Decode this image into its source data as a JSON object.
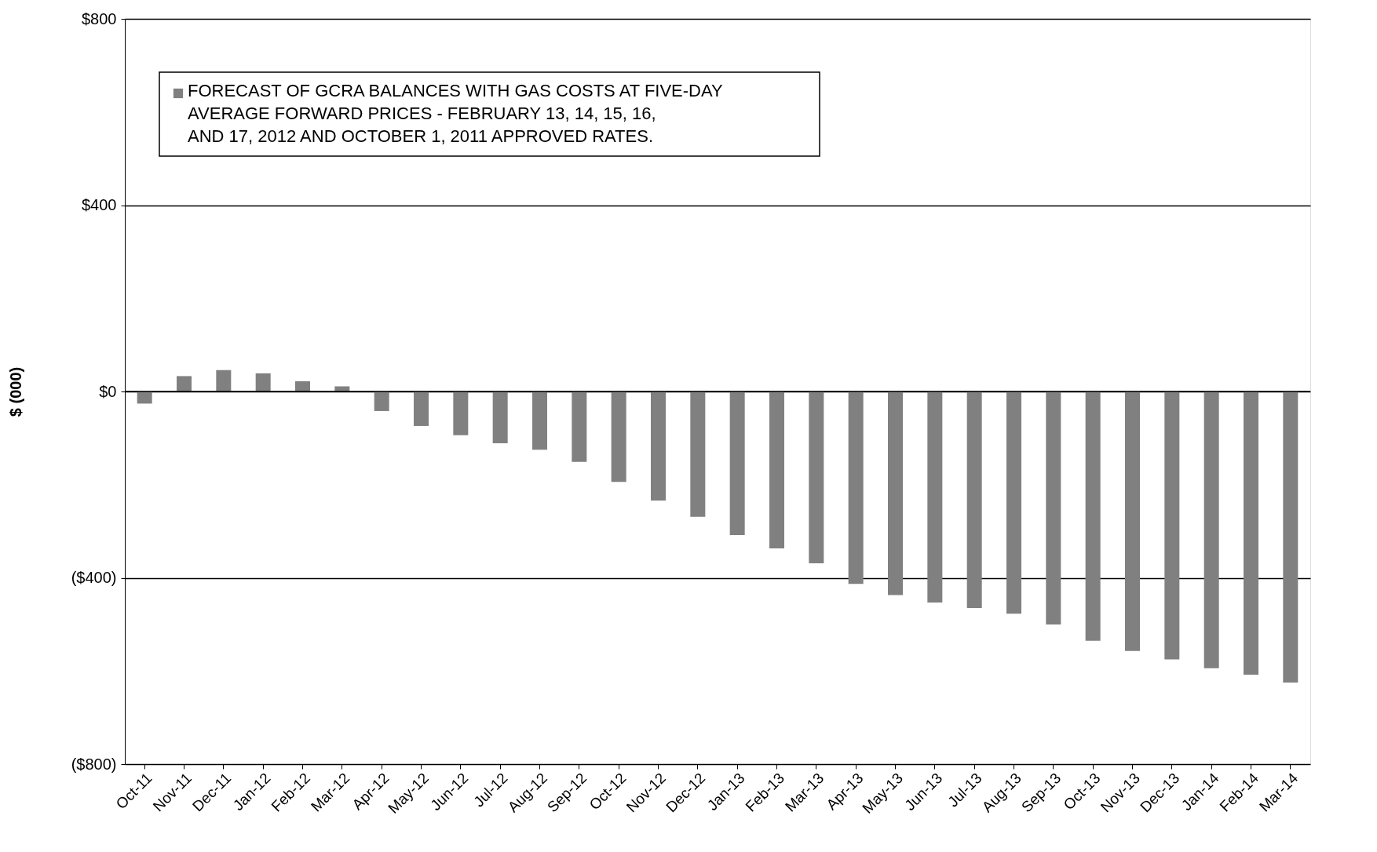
{
  "chart_data": {
    "type": "bar",
    "ylabel": "$ (000)",
    "categories": [
      "Oct-11",
      "Nov-11",
      "Dec-11",
      "Jan-12",
      "Feb-12",
      "Mar-12",
      "Apr-12",
      "May-12",
      "Jun-12",
      "Jul-12",
      "Aug-12",
      "Sep-12",
      "Oct-12",
      "Nov-12",
      "Dec-12",
      "Jan-13",
      "Feb-13",
      "Mar-13",
      "Apr-13",
      "May-13",
      "Jun-13",
      "Jul-13",
      "Aug-13",
      "Sep-13",
      "Oct-13",
      "Nov-13",
      "Dec-13",
      "Jan-14",
      "Feb-14",
      "Mar-14"
    ],
    "series": [
      {
        "name": "FORECAST OF GCRA BALANCES WITH GAS COSTS AT FIVE-DAY AVERAGE FORWARD PRICES - FEBRUARY 13, 14, 15, 16, AND 17, 2012 AND OCTOBER 1, 2011 APPROVED RATES.",
        "color": "#808080",
        "values": [
          -26,
          33,
          46,
          39,
          22,
          11,
          -42,
          -74,
          -94,
          -111,
          -125,
          -151,
          -194,
          -234,
          -269,
          -308,
          -337,
          -369,
          -413,
          -437,
          -453,
          -465,
          -477,
          -500,
          -535,
          -557,
          -575,
          -594,
          -608,
          -625
        ]
      }
    ],
    "ylim": [
      -800,
      800
    ],
    "yticks": [
      {
        "value": -800,
        "label": "($800)"
      },
      {
        "value": -400,
        "label": "($400)"
      },
      {
        "value": 0,
        "label": "$0"
      },
      {
        "value": 400,
        "label": "$400"
      },
      {
        "value": 800,
        "label": "$800"
      }
    ],
    "grid": "y",
    "legend": "top left"
  }
}
